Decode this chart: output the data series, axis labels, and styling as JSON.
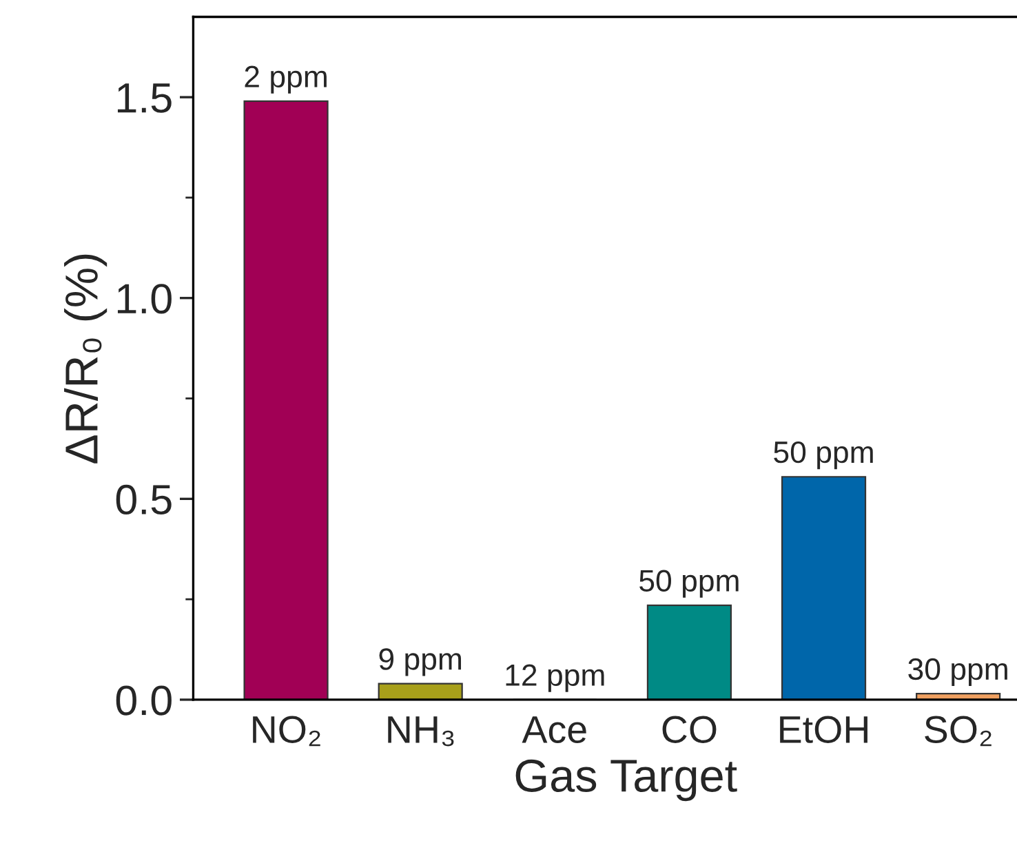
{
  "chart_data": {
    "type": "bar",
    "xlabel": "Gas Target",
    "ylabel": "ΔR/R₀ (%)",
    "categories": [
      "NO₂",
      "NH₃",
      "Ace",
      "CO",
      "EtOH",
      "SO₂"
    ],
    "values": [
      1.49,
      0.04,
      0.0,
      0.235,
      0.555,
      0.015
    ],
    "colors": [
      "#a10055",
      "#a8a01a",
      "#333333",
      "#008a85",
      "#0066aa",
      "#f0a060"
    ],
    "annotations": [
      {
        "text": "2 ppm",
        "x": "NO₂",
        "y": 1.49
      },
      {
        "text": "9 ppm",
        "x": "NH₃",
        "y": 0.04
      },
      {
        "text": "12 ppm",
        "x": "Ace",
        "y": 0.0
      },
      {
        "text": "50 ppm",
        "x": "CO",
        "y": 0.235
      },
      {
        "text": "50 ppm",
        "x": "EtOH",
        "y": 0.555
      },
      {
        "text": "30 ppm",
        "x": "SO₂",
        "y": 0.015
      }
    ],
    "ylim": [
      0,
      1.7
    ],
    "yticks": [
      {
        "value": 0,
        "label": "0.0"
      },
      0.5,
      {
        "value": 1,
        "label": "1.0"
      },
      1.5
    ],
    "grid": false,
    "legend": false
  }
}
